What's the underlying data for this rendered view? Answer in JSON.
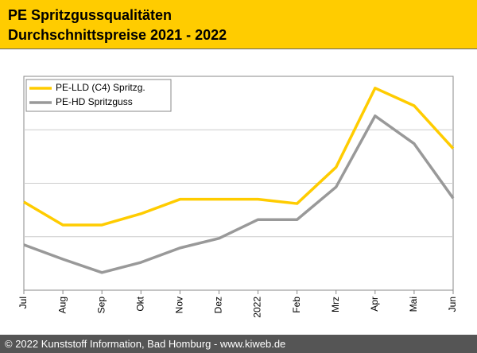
{
  "chart_data": {
    "type": "line",
    "title": "PE Spritzgussqualitäten",
    "subtitle": "Durchschnittspreise 2021 - 2022",
    "categories": [
      "Jul",
      "Aug",
      "Sep",
      "Okt",
      "Nov",
      "Dez",
      "2022",
      "Feb",
      "Mrz",
      "Apr",
      "Mai",
      "Jun"
    ],
    "series": [
      {
        "name": "PE-LLD (C4) Spritzg.",
        "color": "#ffcc00",
        "values": [
          1.65,
          1.22,
          1.22,
          1.43,
          1.7,
          1.7,
          1.7,
          1.62,
          2.3,
          3.78,
          3.45,
          2.65
        ]
      },
      {
        "name": "PE-HD Spritzguss",
        "color": "#999999",
        "values": [
          0.85,
          0.58,
          0.33,
          0.52,
          0.79,
          0.97,
          1.32,
          1.32,
          1.93,
          3.26,
          2.74,
          1.72
        ]
      }
    ],
    "ylim": [
      0,
      4
    ],
    "yticks": [
      1,
      2,
      3
    ],
    "grid": true,
    "legend": "upper left",
    "footer": "© 2022 Kunststoff Information, Bad Homburg - www.kiweb.de"
  }
}
